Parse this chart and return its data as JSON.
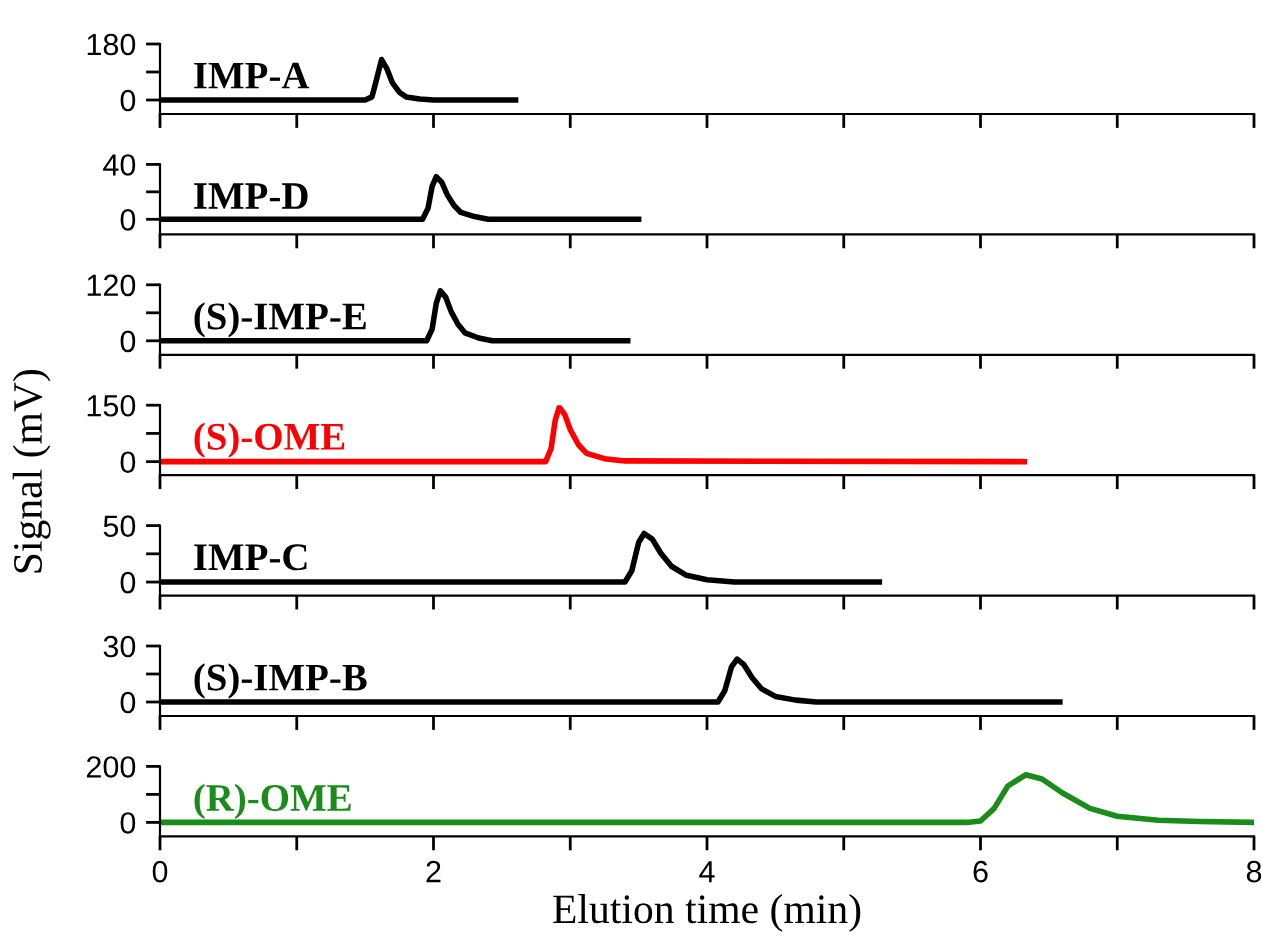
{
  "chart_data": [
    {
      "type": "line",
      "xlim": [
        0,
        8
      ],
      "ylim": [
        -45,
        180
      ],
      "yticks": [
        0,
        {
          "value": 90,
          "label": null
        },
        180
      ],
      "xticks": [
        0,
        {
          "value": 1,
          "label": null
        },
        2,
        {
          "value": 3,
          "label": null
        },
        4,
        {
          "value": 5,
          "label": null
        },
        6,
        {
          "value": 7,
          "label": null
        },
        8
      ],
      "tick_labels": "y",
      "grid": false,
      "legend": false,
      "series": [
        {
          "name": "IMP-A",
          "color": "#000000",
          "x": [
            0,
            1.5,
            1.55,
            1.58,
            1.62,
            1.66,
            1.7,
            1.75,
            1.8,
            1.9,
            2.0,
            2.6
          ],
          "values": [
            0,
            0,
            10,
            60,
            130,
            100,
            55,
            25,
            10,
            3,
            0,
            0
          ]
        }
      ]
    },
    {
      "type": "line",
      "xlim": [
        0,
        8
      ],
      "ylim": [
        -11,
        40
      ],
      "yticks": [
        0,
        {
          "value": 20,
          "label": null
        },
        40
      ],
      "xticks": [
        0,
        {
          "value": 1,
          "label": null
        },
        2,
        {
          "value": 3,
          "label": null
        },
        4,
        {
          "value": 5,
          "label": null
        },
        6,
        {
          "value": 7,
          "label": null
        },
        8
      ],
      "tick_labels": "y",
      "grid": false,
      "legend": false,
      "series": [
        {
          "name": "IMP-D",
          "color": "#000000",
          "x": [
            0,
            1.92,
            1.96,
            1.99,
            2.02,
            2.06,
            2.1,
            2.15,
            2.2,
            2.3,
            2.4,
            3.5
          ],
          "values": [
            0,
            0,
            8,
            24,
            31,
            27,
            18,
            10,
            5,
            2,
            0,
            0
          ]
        }
      ]
    },
    {
      "type": "line",
      "xlim": [
        0,
        8
      ],
      "ylim": [
        -30,
        120
      ],
      "yticks": [
        0,
        {
          "value": 60,
          "label": null
        },
        120
      ],
      "xticks": [
        0,
        {
          "value": 1,
          "label": null
        },
        2,
        {
          "value": 3,
          "label": null
        },
        4,
        {
          "value": 5,
          "label": null
        },
        6,
        {
          "value": 7,
          "label": null
        },
        8
      ],
      "tick_labels": "y",
      "grid": false,
      "legend": false,
      "series": [
        {
          "name": "(S)-IMP-E",
          "color": "#000000",
          "x": [
            0,
            1.95,
            1.99,
            2.02,
            2.05,
            2.09,
            2.13,
            2.18,
            2.23,
            2.33,
            2.43,
            3.42
          ],
          "values": [
            0,
            0,
            25,
            80,
            107,
            93,
            62,
            35,
            17,
            6,
            0,
            0
          ]
        }
      ]
    },
    {
      "type": "line",
      "xlim": [
        0,
        8
      ],
      "ylim": [
        -36,
        150
      ],
      "yticks": [
        0,
        {
          "value": 75,
          "label": null
        },
        150
      ],
      "xticks": [
        0,
        {
          "value": 1,
          "label": null
        },
        2,
        {
          "value": 3,
          "label": null
        },
        4,
        {
          "value": 5,
          "label": null
        },
        6,
        {
          "value": 7,
          "label": null
        },
        8
      ],
      "tick_labels": "y",
      "grid": false,
      "legend": false,
      "ylabel": "Signal (mV)",
      "series": [
        {
          "name": "(S)-OME",
          "color": "#ff0000",
          "x": [
            0,
            2.82,
            2.86,
            2.89,
            2.92,
            2.96,
            3.0,
            3.06,
            3.12,
            3.25,
            3.4,
            6.32
          ],
          "values": [
            0,
            0,
            35,
            110,
            145,
            125,
            85,
            45,
            22,
            8,
            2,
            0
          ]
        }
      ]
    },
    {
      "type": "line",
      "xlim": [
        0,
        8
      ],
      "ylim": [
        -12,
        50
      ],
      "yticks": [
        0,
        {
          "value": 25,
          "label": null
        },
        50
      ],
      "xticks": [
        0,
        {
          "value": 1,
          "label": null
        },
        2,
        {
          "value": 3,
          "label": null
        },
        4,
        {
          "value": 5,
          "label": null
        },
        6,
        {
          "value": 7,
          "label": null
        },
        8
      ],
      "tick_labels": "y",
      "grid": false,
      "legend": false,
      "series": [
        {
          "name": "IMP-C",
          "color": "#000000",
          "x": [
            0,
            3.4,
            3.45,
            3.5,
            3.54,
            3.6,
            3.66,
            3.74,
            3.85,
            4.0,
            4.2,
            5.26
          ],
          "values": [
            0,
            0,
            10,
            35,
            43,
            38,
            26,
            14,
            6,
            2,
            0,
            0
          ]
        }
      ]
    },
    {
      "type": "line",
      "xlim": [
        0,
        8
      ],
      "ylim": [
        -7.5,
        30
      ],
      "yticks": [
        0,
        {
          "value": 15,
          "label": null
        },
        30
      ],
      "xticks": [
        0,
        {
          "value": 1,
          "label": null
        },
        2,
        {
          "value": 3,
          "label": null
        },
        4,
        {
          "value": 5,
          "label": null
        },
        6,
        {
          "value": 7,
          "label": null
        },
        8
      ],
      "tick_labels": "y",
      "grid": false,
      "legend": false,
      "series": [
        {
          "name": "(S)-IMP-B",
          "color": "#000000",
          "x": [
            0,
            4.08,
            4.13,
            4.18,
            4.22,
            4.27,
            4.33,
            4.4,
            4.5,
            4.65,
            4.8,
            6.58
          ],
          "values": [
            0,
            0,
            6,
            19,
            23,
            20,
            13,
            7,
            3,
            1,
            0,
            0
          ]
        }
      ]
    },
    {
      "type": "line",
      "xlim": [
        0,
        8
      ],
      "ylim": [
        -50,
        200
      ],
      "yticks": [
        0,
        {
          "value": 100,
          "label": null
        },
        200
      ],
      "xticks": [
        0,
        {
          "value": 1,
          "label": null
        },
        2,
        {
          "value": 3,
          "label": null
        },
        4,
        {
          "value": 5,
          "label": null
        },
        6,
        {
          "value": 7,
          "label": null
        },
        8
      ],
      "grid": false,
      "legend": false,
      "xlabel": "Elution time (min)",
      "series": [
        {
          "name": "(R)-OME",
          "color": "#1a8c1a",
          "x": [
            0,
            5.9,
            6.0,
            6.1,
            6.2,
            6.33,
            6.45,
            6.6,
            6.8,
            7.0,
            7.3,
            7.6,
            8.0
          ],
          "values": [
            0,
            0,
            5,
            50,
            130,
            170,
            155,
            105,
            50,
            22,
            8,
            3,
            0
          ]
        }
      ]
    }
  ]
}
